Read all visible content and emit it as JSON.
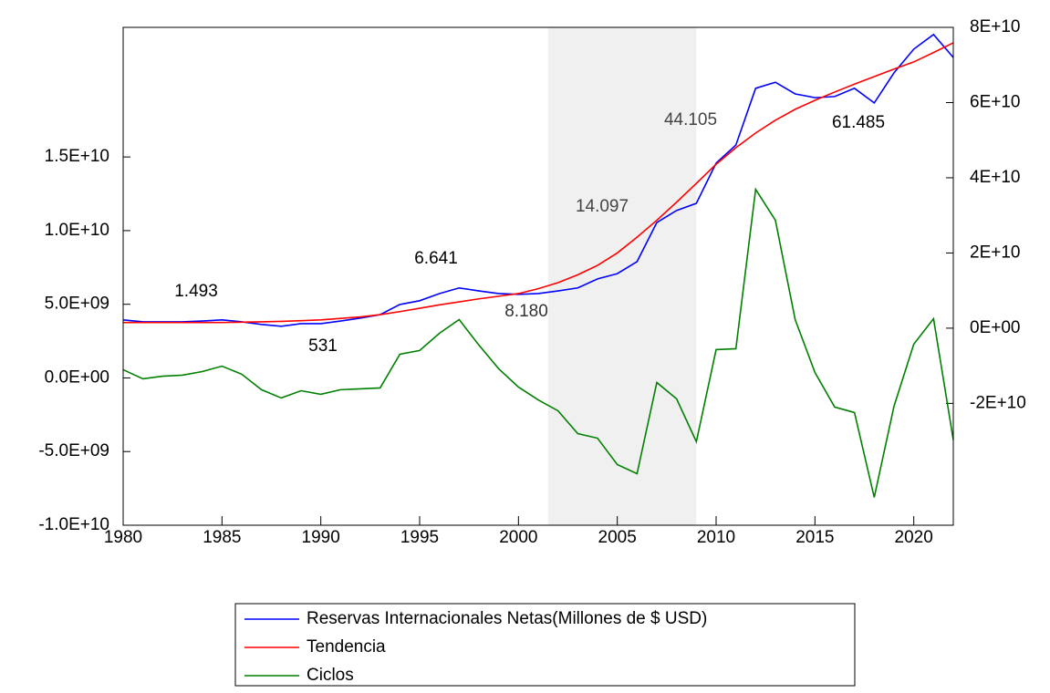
{
  "chart_data": {
    "type": "line",
    "x": [
      1980,
      1981,
      1982,
      1983,
      1984,
      1985,
      1986,
      1987,
      1988,
      1989,
      1990,
      1991,
      1992,
      1993,
      1994,
      1995,
      1996,
      1997,
      1998,
      1999,
      2000,
      2001,
      2002,
      2003,
      2004,
      2005,
      2006,
      2007,
      2008,
      2009,
      2010,
      2011,
      2012,
      2013,
      2014,
      2015,
      2016,
      2017,
      2018,
      2019,
      2020,
      2021,
      2022
    ],
    "xlim": [
      1980,
      2022
    ],
    "xticks": [
      1980,
      1985,
      1990,
      1995,
      2000,
      2005,
      2010,
      2015,
      2020
    ],
    "ylim": [
      -10000000000,
      23800000000
    ],
    "yticks": [
      {
        "value": -10000000000,
        "label": "-1.0E+10"
      },
      {
        "value": -5000000000,
        "label": "-5.0E+09"
      },
      {
        "value": 0,
        "label": "0.0E+00"
      },
      {
        "value": 5000000000,
        "label": "5.0E+09"
      },
      {
        "value": 10000000000,
        "label": "1.0E+10"
      },
      {
        "value": 15000000000,
        "label": "1.5E+10"
      }
    ],
    "y2lim": [
      -52400000000,
      80000000000
    ],
    "y2ticks": [
      {
        "value": -20000000000,
        "label": "-2E+10"
      },
      {
        "value": 0,
        "label": "0E+00"
      },
      {
        "value": 20000000000,
        "label": "2E+10"
      },
      {
        "value": 40000000000,
        "label": "4E+10"
      },
      {
        "value": 60000000000,
        "label": "6E+10"
      },
      {
        "value": 80000000000,
        "label": "8E+10"
      }
    ],
    "shaded_region": [
      2001.5,
      2009
    ],
    "series": [
      {
        "name": "Reservas Internacionales Netas(Millones de $ USD)",
        "color": "#0000ff",
        "axis": "y2",
        "values": [
          2200000000,
          1700000000,
          1700000000,
          1700000000,
          1900000000,
          2200000000,
          1700000000,
          1000000000,
          500000000,
          1200000000,
          1200000000,
          1900000000,
          2700000000,
          3600000000,
          6300000000,
          7300000000,
          9200000000,
          10700000000,
          9900000000,
          9200000000,
          9000000000,
          9200000000,
          9900000000,
          10700000000,
          13100000000,
          14500000000,
          17700000000,
          28100000000,
          31300000000,
          33200000000,
          43900000000,
          48700000000,
          63800000000,
          65400000000,
          62300000000,
          61300000000,
          61600000000,
          63800000000,
          59900000000,
          67900000000,
          74200000000,
          78100000000,
          72000000000
        ]
      },
      {
        "name": "Tendencia",
        "color": "#ff0000",
        "axis": "y2",
        "values": [
          1500000000,
          1500000000,
          1500000000,
          1500000000,
          1500000000,
          1500000000,
          1600000000,
          1700000000,
          1800000000,
          2000000000,
          2200000000,
          2600000000,
          3000000000,
          3600000000,
          4400000000,
          5300000000,
          6200000000,
          7000000000,
          7800000000,
          8500000000,
          9200000000,
          10500000000,
          12100000000,
          14200000000,
          16700000000,
          20000000000,
          24200000000,
          28700000000,
          33500000000,
          38500000000,
          43600000000,
          48000000000,
          51900000000,
          55300000000,
          58200000000,
          60600000000,
          62800000000,
          64900000000,
          66900000000,
          68900000000,
          70800000000,
          73300000000,
          75900000000
        ]
      },
      {
        "name": "Ciclos",
        "color": "#008000",
        "values": [
          560000000,
          -60000000,
          120000000,
          190000000,
          430000000,
          800000000,
          250000000,
          -800000000,
          -1360000000,
          -870000000,
          -1110000000,
          -800000000,
          -740000000,
          -680000000,
          1610000000,
          1860000000,
          3030000000,
          3960000000,
          2230000000,
          620000000,
          -620000000,
          -1490000000,
          -2230000000,
          -3780000000,
          -4090000000,
          -5880000000,
          -6500000000,
          -310000000,
          -1420000000,
          -4330000000,
          1920000000,
          1980000000,
          12800000000,
          10700000000,
          3960000000,
          370000000,
          -1980000000,
          -2350000000,
          -8110000000,
          -1920000000,
          2290000000,
          4020000000,
          -4210000000
        ]
      }
    ],
    "annotations": [
      "1.493",
      "531",
      "6.641",
      "8.180",
      "14.097",
      "44.105",
      "61.485"
    ]
  }
}
